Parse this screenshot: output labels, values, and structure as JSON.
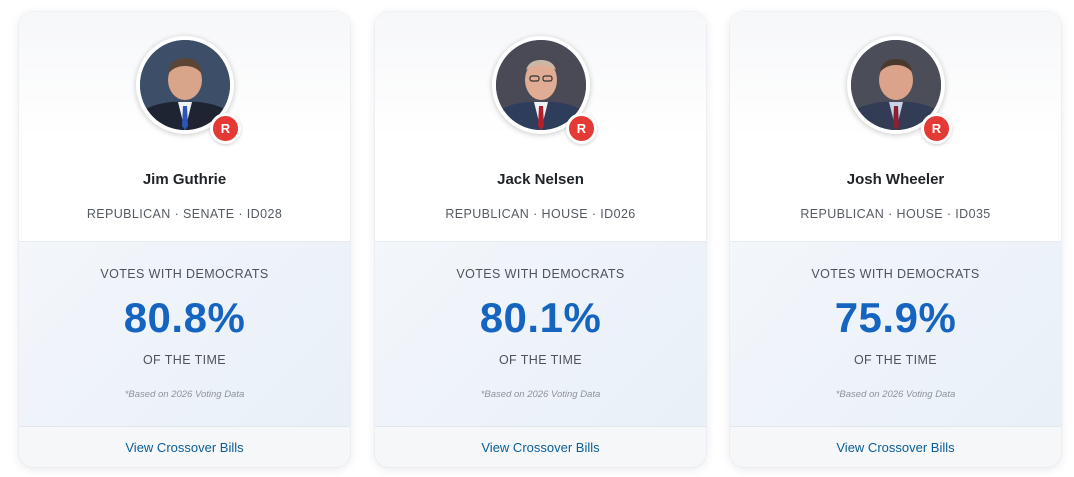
{
  "cards": [
    {
      "name": "Jim Guthrie",
      "meta": "REPUBLICAN · SENATE · ID028",
      "party_badge": "R",
      "stat_label": "VOTES WITH DEMOCRATS",
      "stat_value": "80.8%",
      "stat_suffix": "OF THE TIME",
      "note": "*Based on 2026 Voting Data",
      "link": "View Crossover Bills"
    },
    {
      "name": "Jack Nelsen",
      "meta": "REPUBLICAN · HOUSE · ID026",
      "party_badge": "R",
      "stat_label": "VOTES WITH DEMOCRATS",
      "stat_value": "80.1%",
      "stat_suffix": "OF THE TIME",
      "note": "*Based on 2026 Voting Data",
      "link": "View Crossover Bills"
    },
    {
      "name": "Josh Wheeler",
      "meta": "REPUBLICAN · HOUSE · ID035",
      "party_badge": "R",
      "stat_label": "VOTES WITH DEMOCRATS",
      "stat_value": "75.9%",
      "stat_suffix": "OF THE TIME",
      "note": "*Based on 2026 Voting Data",
      "link": "View Crossover Bills"
    }
  ],
  "colors": {
    "accent": "#1565c0",
    "party_republican": "#e53935",
    "link": "#0b5d96"
  }
}
